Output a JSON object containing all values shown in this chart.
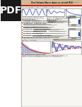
{
  "title": "Oscillations libres dans un circuit RLC",
  "bg_color": "#ffffff",
  "pdf_bg": "#1a1a1a",
  "header_tan": "#d4b896",
  "header_red": "#cc2200",
  "doc_bg": "#f7f6f2",
  "text_dark": "#111111",
  "text_mid": "#333333",
  "text_gray": "#666666",
  "line_gray": "#aaaaaa",
  "graph_border": "#777777",
  "blue_plot": "#2244bb",
  "red_plot": "#cc1111",
  "section_red": "#cc2200",
  "formula_gray": "#888888",
  "hatch_color": "#9999bb",
  "circuit_gray": "#555555",
  "energy_bg": "#e8e4d8"
}
